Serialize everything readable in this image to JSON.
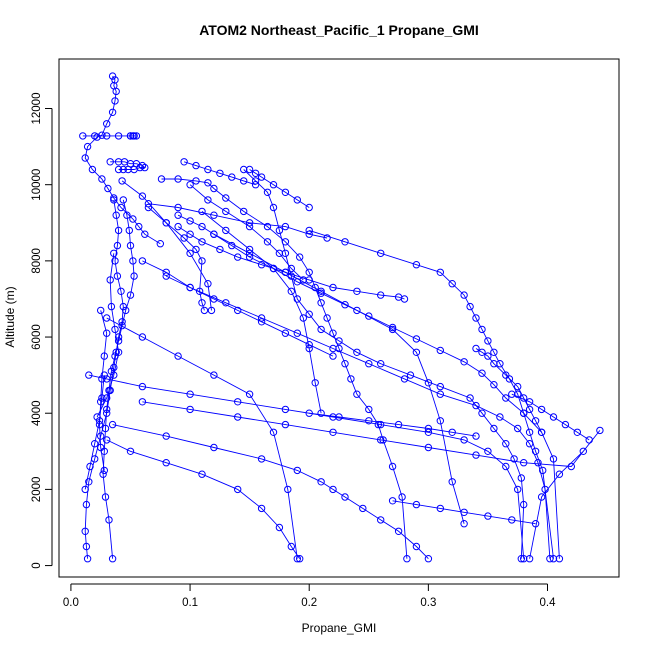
{
  "chart_data": {
    "type": "scatter",
    "title": "ATOM2 Northeast_Pacific_1 Propane_GMI",
    "xlabel": "Propane_GMI",
    "ylabel": "Altitude (m)",
    "xlim": [
      -0.01,
      0.46
    ],
    "ylim": [
      -300,
      13300
    ],
    "x_ticks": [
      0,
      0.1,
      0.2,
      0.3,
      0.4
    ],
    "x_tick_labels": [
      "0.0",
      "0.1",
      "0.2",
      "0.3",
      "0.4"
    ],
    "y_ticks": [
      0,
      2000,
      4000,
      6000,
      8000,
      10000,
      12000
    ],
    "y_tick_labels": [
      "0",
      "2000",
      "4000",
      "6000",
      "8000",
      "10000",
      "12000"
    ],
    "color": "#0000ff",
    "marker": "open-circle",
    "connected": true,
    "grid": false,
    "series": [
      {
        "x": [
          0.035,
          0.037,
          0.036,
          0.038,
          0.037,
          0.035,
          0.03,
          0.026,
          0.022,
          0.014,
          0.012,
          0.018,
          0.026,
          0.031,
          0.036,
          0.042,
          0.052,
          0.057,
          0.062,
          0.075
        ],
        "y": [
          12850,
          12750,
          12600,
          12450,
          12200,
          11900,
          11600,
          11300,
          11250,
          11000,
          10700,
          10400,
          10150,
          9900,
          9650,
          9400,
          9100,
          8900,
          8700,
          8450
        ]
      },
      {
        "x": [
          0.01,
          0.02,
          0.03,
          0.04,
          0.05,
          0.055,
          0.053,
          0.05,
          0.052
        ],
        "y": [
          11280,
          11280,
          11280,
          11280,
          11280,
          11280,
          11280,
          11280,
          11280
        ]
      },
      {
        "x": [
          0.033,
          0.04,
          0.045,
          0.05,
          0.055,
          0.06,
          0.062,
          0.058,
          0.053,
          0.048,
          0.044,
          0.04
        ],
        "y": [
          10600,
          10600,
          10600,
          10550,
          10550,
          10500,
          10450,
          10450,
          10400,
          10400,
          10400,
          10400
        ]
      },
      {
        "x": [
          0.036,
          0.038,
          0.04,
          0.039,
          0.037,
          0.039,
          0.042,
          0.044,
          0.043,
          0.04,
          0.038,
          0.036,
          0.033,
          0.03,
          0.025,
          0.02,
          0.015,
          0.013,
          0.012,
          0.013,
          0.014
        ],
        "y": [
          9600,
          9200,
          8800,
          8400,
          8000,
          7600,
          7200,
          6800,
          6400,
          6000,
          5600,
          5200,
          4600,
          4000,
          3400,
          2800,
          2200,
          1600,
          900,
          500,
          180
        ]
      },
      {
        "x": [
          0.044,
          0.047,
          0.049,
          0.05,
          0.052,
          0.053,
          0.05,
          0.046,
          0.043,
          0.04,
          0.037,
          0.034,
          0.032,
          0.03,
          0.029,
          0.028,
          0.027,
          0.029,
          0.032,
          0.035
        ],
        "y": [
          9600,
          9200,
          8800,
          8400,
          8000,
          7600,
          7100,
          6700,
          6300,
          5900,
          5500,
          5100,
          4600,
          4100,
          3600,
          3000,
          2400,
          1800,
          1200,
          180
        ]
      },
      {
        "x": [
          0.076,
          0.09,
          0.105,
          0.115,
          0.12,
          0.13,
          0.145,
          0.165,
          0.18,
          0.192,
          0.2,
          0.205,
          0.21,
          0.215,
          0.22,
          0.225,
          0.23,
          0.235,
          0.24,
          0.25,
          0.258,
          0.262,
          0.27,
          0.278,
          0.282
        ],
        "y": [
          10150,
          10150,
          10100,
          10050,
          9900,
          9650,
          9300,
          8900,
          8500,
          8100,
          7700,
          7300,
          6900,
          6500,
          6100,
          5700,
          5300,
          4900,
          4500,
          4100,
          3700,
          3300,
          2600,
          1800,
          180
        ]
      },
      {
        "x": [
          0.145,
          0.155,
          0.165,
          0.17,
          0.175,
          0.18,
          0.185,
          0.19,
          0.2,
          0.21,
          0.225,
          0.24,
          0.26,
          0.285,
          0.31,
          0.335,
          0.345,
          0.355,
          0.365,
          0.372,
          0.378,
          0.38,
          0.378
        ],
        "y": [
          10400,
          10100,
          9800,
          9400,
          8800,
          8200,
          7600,
          7000,
          6600,
          6200,
          5900,
          5600,
          5300,
          5000,
          4700,
          4400,
          4000,
          3600,
          3200,
          2800,
          2300,
          1600,
          180
        ]
      },
      {
        "x": [
          0.09,
          0.1,
          0.11,
          0.12,
          0.135,
          0.15,
          0.17,
          0.19,
          0.21,
          0.23,
          0.25,
          0.27,
          0.29,
          0.31,
          0.33,
          0.345,
          0.355,
          0.365,
          0.38,
          0.395,
          0.405,
          0.41
        ],
        "y": [
          9200,
          9050,
          8900,
          8700,
          8400,
          8100,
          7800,
          7450,
          7150,
          6850,
          6550,
          6250,
          5950,
          5650,
          5350,
          5050,
          4750,
          4400,
          4000,
          3500,
          2800,
          180
        ]
      },
      {
        "x": [
          0.2,
          0.23,
          0.26,
          0.29,
          0.31,
          0.32,
          0.33,
          0.335,
          0.34,
          0.345,
          0.35,
          0.355,
          0.36,
          0.368,
          0.375,
          0.38,
          0.385,
          0.39,
          0.396,
          0.405
        ],
        "y": [
          8800,
          8500,
          8200,
          7900,
          7700,
          7400,
          7100,
          6800,
          6500,
          6200,
          5900,
          5600,
          5300,
          4900,
          4500,
          4000,
          3500,
          3000,
          2500,
          180
        ]
      },
      {
        "x": [
          0.06,
          0.08,
          0.1,
          0.13,
          0.16,
          0.19,
          0.22,
          0.25,
          0.28,
          0.31,
          0.34,
          0.36,
          0.375,
          0.385,
          0.392,
          0.398,
          0.402
        ],
        "y": [
          8000,
          7700,
          7300,
          6900,
          6500,
          6100,
          5700,
          5300,
          4900,
          4500,
          4200,
          3900,
          3600,
          3200,
          2700,
          2000,
          180
        ]
      },
      {
        "x": [
          0.015,
          0.03,
          0.06,
          0.1,
          0.14,
          0.18,
          0.22,
          0.26,
          0.3,
          0.33,
          0.35,
          0.365,
          0.375,
          0.38
        ],
        "y": [
          5000,
          4900,
          4700,
          4500,
          4300,
          4100,
          3900,
          3700,
          3500,
          3300,
          3000,
          2600,
          2000,
          180
        ]
      },
      {
        "x": [
          0.06,
          0.1,
          0.14,
          0.18,
          0.22,
          0.26,
          0.3,
          0.34,
          0.38,
          0.42,
          0.444,
          0.43,
          0.41,
          0.395,
          0.385
        ],
        "y": [
          4300,
          4100,
          3900,
          3700,
          3500,
          3300,
          3100,
          2900,
          2700,
          2600,
          3550,
          3000,
          2400,
          1800,
          180
        ]
      },
      {
        "x": [
          0.035,
          0.08,
          0.12,
          0.16,
          0.19,
          0.21,
          0.22,
          0.23,
          0.245,
          0.26,
          0.275,
          0.29,
          0.3
        ],
        "y": [
          3700,
          3400,
          3100,
          2800,
          2500,
          2200,
          2000,
          1800,
          1500,
          1200,
          900,
          500,
          180
        ]
      },
      {
        "x": [
          0.03,
          0.05,
          0.08,
          0.11,
          0.14,
          0.16,
          0.175,
          0.185,
          0.192
        ],
        "y": [
          3300,
          3000,
          2700,
          2400,
          2000,
          1500,
          1000,
          500,
          180
        ]
      },
      {
        "x": [
          0.03,
          0.06,
          0.09,
          0.12,
          0.15,
          0.17,
          0.182,
          0.19
        ],
        "y": [
          6500,
          6000,
          5500,
          5000,
          4500,
          3500,
          2000,
          180
        ]
      },
      {
        "x": [
          0.11,
          0.13,
          0.15,
          0.17,
          0.185,
          0.195,
          0.2,
          0.205,
          0.21
        ],
        "y": [
          9300,
          8800,
          8300,
          7800,
          7200,
          6500,
          5700,
          4800,
          4000
        ]
      },
      {
        "x": [
          0.12,
          0.15,
          0.18,
          0.21,
          0.24,
          0.27,
          0.29,
          0.3,
          0.31,
          0.32,
          0.33
        ],
        "y": [
          8700,
          8200,
          7700,
          7200,
          6700,
          6200,
          5600,
          4800,
          3800,
          2200,
          1100
        ]
      },
      {
        "x": [
          0.043,
          0.06,
          0.08,
          0.1,
          0.115,
          0.118
        ],
        "y": [
          10100,
          9700,
          9000,
          8200,
          7400,
          6700
        ]
      },
      {
        "x": [
          0.065,
          0.08,
          0.095,
          0.105,
          0.11,
          0.108,
          0.11,
          0.112
        ],
        "y": [
          9400,
          9000,
          8600,
          8300,
          8000,
          7200,
          6900,
          6700
        ]
      },
      {
        "x": [
          0.1,
          0.115,
          0.13,
          0.15,
          0.165,
          0.175,
          0.185,
          0.195
        ],
        "y": [
          10000,
          9600,
          9300,
          8900,
          8500,
          8200,
          7800,
          7500
        ]
      },
      {
        "x": [
          0.09,
          0.1,
          0.11,
          0.125,
          0.14,
          0.16,
          0.18,
          0.2,
          0.22,
          0.24,
          0.26,
          0.275,
          0.28
        ],
        "y": [
          8900,
          8700,
          8500,
          8300,
          8100,
          7900,
          7700,
          7500,
          7300,
          7200,
          7100,
          7050,
          7000
        ]
      },
      {
        "x": [
          0.34,
          0.345,
          0.35,
          0.355,
          0.365,
          0.375,
          0.38,
          0.385,
          0.39,
          0.395
        ],
        "y": [
          5700,
          5600,
          5500,
          5300,
          5000,
          4700,
          4400,
          4100,
          3800,
          3500
        ]
      },
      {
        "x": [
          0.37,
          0.385,
          0.395,
          0.405,
          0.415,
          0.425,
          0.435
        ],
        "y": [
          4500,
          4300,
          4100,
          3900,
          3700,
          3500,
          3300
        ]
      },
      {
        "x": [
          0.025,
          0.03,
          0.028,
          0.026,
          0.025,
          0.024,
          0.025,
          0.028
        ],
        "y": [
          6700,
          6100,
          5500,
          4900,
          4300,
          3700,
          3100,
          2500
        ]
      },
      {
        "x": [
          0.022,
          0.03,
          0.036,
          0.04,
          0.037,
          0.034,
          0.033,
          0.036
        ],
        "y": [
          3900,
          4400,
          5000,
          5600,
          6200,
          6800,
          7500,
          8200
        ]
      },
      {
        "x": [
          0.012,
          0.016,
          0.02,
          0.024,
          0.026,
          0.028
        ],
        "y": [
          2000,
          2600,
          3200,
          3800,
          4400,
          5000
        ]
      },
      {
        "x": [
          0.2,
          0.225,
          0.25,
          0.275,
          0.3,
          0.32,
          0.34
        ],
        "y": [
          4000,
          3900,
          3800,
          3700,
          3600,
          3500,
          3400
        ]
      },
      {
        "x": [
          0.27,
          0.29,
          0.31,
          0.33,
          0.35,
          0.37,
          0.39
        ],
        "y": [
          1700,
          1600,
          1500,
          1400,
          1300,
          1200,
          1100
        ]
      },
      {
        "x": [
          0.065,
          0.09,
          0.12,
          0.15,
          0.18,
          0.2,
          0.215
        ],
        "y": [
          9500,
          9400,
          9200,
          9000,
          8900,
          8700,
          8600
        ]
      },
      {
        "x": [
          0.095,
          0.105,
          0.115,
          0.125,
          0.135,
          0.145,
          0.155
        ],
        "y": [
          10600,
          10500,
          10400,
          10300,
          10200,
          10100,
          10000
        ]
      },
      {
        "x": [
          0.15,
          0.155,
          0.16,
          0.17,
          0.18,
          0.19,
          0.2
        ],
        "y": [
          10400,
          10300,
          10200,
          10000,
          9800,
          9600,
          9400
        ]
      },
      {
        "x": [
          0.08,
          0.1,
          0.12,
          0.14,
          0.16,
          0.18,
          0.2,
          0.22
        ],
        "y": [
          7600,
          7300,
          7000,
          6700,
          6400,
          6100,
          5800,
          5500
        ]
      }
    ]
  }
}
